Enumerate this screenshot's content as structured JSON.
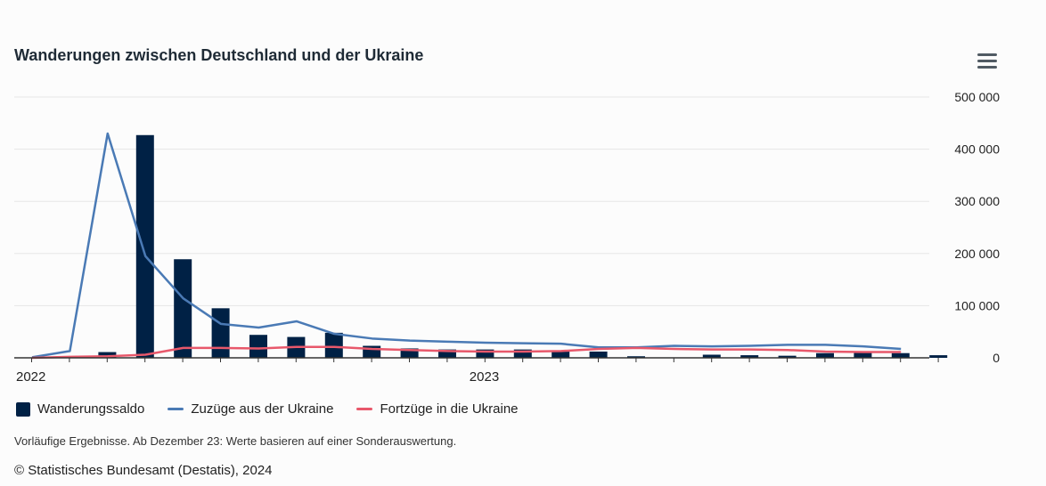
{
  "title": "Wanderungen zwischen Deutschland und der Ukraine",
  "legend": {
    "saldo": "Wanderungssaldo",
    "zuzuege": "Zuzüge aus der Ukraine",
    "fortzuege": "Fortzüge in die Ukraine"
  },
  "note": "Vorläufige Ergebnisse. Ab Dezember 23: Werte basieren auf einer Sonderauswertung.",
  "credit": "© Statistisches Bundesamt (Destatis), 2024",
  "icons": {
    "menu": "hamburger-menu-icon",
    "logo": "destatis-logo-icon"
  },
  "colors": {
    "saldo": "#002145",
    "zuzuege": "#4a7ab5",
    "fortzuege": "#e8586b"
  },
  "chart_data": {
    "type": "bar",
    "x_ticks": [
      "2022",
      "2023"
    ],
    "y_ticks": [
      "0",
      "100 000",
      "200 000",
      "300 000",
      "400 000",
      "500 000"
    ],
    "ylim": [
      0,
      500000
    ],
    "grid": true,
    "legend_position": "bottom",
    "periods": 24,
    "series": [
      {
        "name": "Wanderungssaldo",
        "kind": "bar",
        "values": [
          0,
          11000,
          427000,
          189000,
          95000,
          44000,
          40000,
          48000,
          23000,
          18000,
          16000,
          16000,
          16000,
          14000,
          12000,
          3000,
          0,
          6000,
          5000,
          4000,
          9000,
          11000,
          9000,
          5000
        ]
      },
      {
        "name": "Zuzüge aus der Ukraine",
        "kind": "line",
        "values": [
          1000,
          13000,
          430000,
          195000,
          114000,
          65000,
          58000,
          70000,
          46000,
          37000,
          33000,
          31000,
          29000,
          28000,
          27000,
          20000,
          20000,
          23000,
          22000,
          23000,
          25000,
          25000,
          22000,
          17000
        ]
      },
      {
        "name": "Fortzüge in die Ukraine",
        "kind": "line",
        "values": [
          0,
          2000,
          3000,
          6000,
          19000,
          19000,
          18000,
          21000,
          21000,
          17000,
          15000,
          13000,
          12000,
          12000,
          13000,
          17000,
          19000,
          17000,
          16000,
          16000,
          15000,
          12000,
          11000,
          11000
        ]
      }
    ]
  }
}
